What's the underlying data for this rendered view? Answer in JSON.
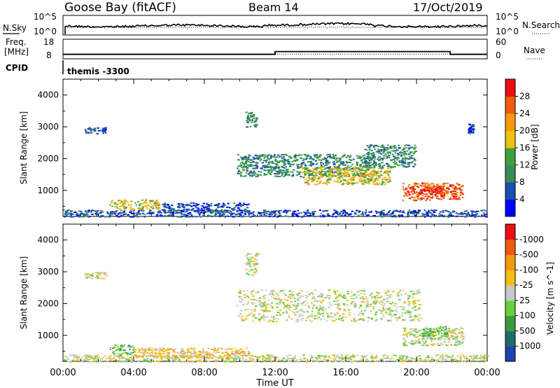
{
  "header": {
    "title": "Goose Bay (fitACF)",
    "beam": "Beam 14",
    "date": "17/Oct/2019"
  },
  "noise_panel": {
    "left_label": "N.Sky",
    "right_label": "N.Search",
    "left_ticks": [
      "10^5",
      "10^0"
    ],
    "right_ticks": [
      "10^5",
      "10^0"
    ],
    "right_legend_style": "dotted"
  },
  "freq_panel": {
    "left_label_top": "Freq.",
    "left_label_bottom": "[MHz]",
    "left_ticks": [
      "18",
      "8"
    ],
    "right_label": "Nave",
    "right_ticks": [
      "60",
      "0"
    ],
    "cpid_label": "CPID",
    "cpid_value": "themis -3300",
    "freq_mhz_steps": [
      {
        "t": 0,
        "f": 10.3
      },
      {
        "t": 12,
        "f": 11.7
      },
      {
        "t": 21.9,
        "f": 10.3
      }
    ],
    "nave_dotted_level": 14.5
  },
  "time_axis": {
    "label": "Time UT",
    "ticks": [
      "00:00",
      "04:00",
      "08:00",
      "12:00",
      "16:00",
      "20:00",
      "00:00"
    ],
    "range_hours": [
      0,
      24
    ]
  },
  "chart_data": [
    {
      "type": "heatmap",
      "name": "power",
      "ylabel": "Slant Range [km]",
      "yticks": [
        "1000",
        "2000",
        "3000",
        "4000"
      ],
      "ylim": [
        180,
        4500
      ],
      "colorbar": {
        "label": "Power [dB]",
        "ticks": [
          "4",
          "8",
          "12",
          "16",
          "20",
          "24",
          "28"
        ],
        "colors": [
          "#0000ff",
          "#1a4fb0",
          "#3c8c5a",
          "#3ca33c",
          "#f2c010",
          "#f59a10",
          "#f05a10",
          "#e81010"
        ]
      },
      "regions": [
        {
          "t0": 0.0,
          "t1": 24.0,
          "r0": 180,
          "r1": 400,
          "level": 1
        },
        {
          "t0": 2.6,
          "t1": 5.4,
          "r0": 420,
          "r1": 720,
          "level": 4
        },
        {
          "t0": 5.5,
          "t1": 10.5,
          "r0": 300,
          "r1": 620,
          "level": 1
        },
        {
          "t0": 9.8,
          "t1": 17.3,
          "r0": 1450,
          "r1": 2150,
          "level": 2
        },
        {
          "t0": 13.5,
          "t1": 18.5,
          "r0": 1200,
          "r1": 1750,
          "level": 4
        },
        {
          "t0": 17.0,
          "t1": 19.9,
          "r0": 1750,
          "r1": 2450,
          "level": 2
        },
        {
          "t0": 19.2,
          "t1": 22.6,
          "r0": 700,
          "r1": 1250,
          "level": 6
        },
        {
          "t0": 20.2,
          "t1": 21.6,
          "r0": 820,
          "r1": 1130,
          "level": 7
        },
        {
          "t0": 1.2,
          "t1": 2.4,
          "r0": 2800,
          "r1": 3000,
          "level": 1
        },
        {
          "t0": 10.3,
          "t1": 11.0,
          "r0": 3000,
          "r1": 3500,
          "level": 2
        },
        {
          "t0": 22.9,
          "t1": 23.2,
          "r0": 2800,
          "r1": 3100,
          "level": 1
        }
      ]
    },
    {
      "type": "heatmap",
      "name": "velocity",
      "ylabel": "Slant Range [km]",
      "yticks": [
        "1000",
        "2000",
        "3000",
        "4000"
      ],
      "ylim": [
        180,
        4500
      ],
      "colorbar": {
        "label": "Velocity [m s^-1]",
        "ticks": [
          "1000",
          "500",
          "100",
          "25",
          "-25",
          "-100",
          "-500",
          "-1000"
        ],
        "colors": [
          "#1f3fb5",
          "#1a6f6a",
          "#3c9a3c",
          "#64d03c",
          "#c8c8c8",
          "#f2c010",
          "#f59a10",
          "#f05a10",
          "#e81010"
        ]
      },
      "regions": [
        {
          "t0": 0.0,
          "t1": 24.0,
          "r0": 180,
          "r1": 400,
          "level": 4
        },
        {
          "t0": 2.6,
          "t1": 4.0,
          "r0": 400,
          "r1": 720,
          "level": 3
        },
        {
          "t0": 4.0,
          "t1": 10.5,
          "r0": 300,
          "r1": 620,
          "level": 5
        },
        {
          "t0": 9.8,
          "t1": 20.2,
          "r0": 1450,
          "r1": 2450,
          "level": 4
        },
        {
          "t0": 19.2,
          "t1": 22.6,
          "r0": 700,
          "r1": 1250,
          "level": 4
        },
        {
          "t0": 20.3,
          "t1": 21.7,
          "r0": 900,
          "r1": 1300,
          "level": 3
        },
        {
          "t0": 1.2,
          "t1": 2.4,
          "r0": 2800,
          "r1": 3000,
          "level": 4
        },
        {
          "t0": 10.3,
          "t1": 11.0,
          "r0": 2900,
          "r1": 3600,
          "level": 4
        }
      ]
    }
  ]
}
